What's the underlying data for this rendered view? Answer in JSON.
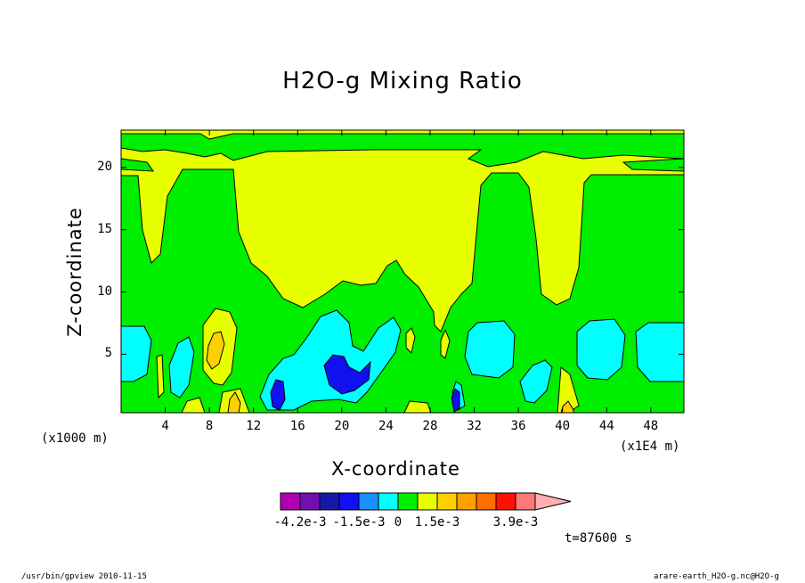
{
  "chart_data": {
    "type": "heatmap",
    "title": "H2O-g Mixing Ratio",
    "xlabel": "X-coordinate",
    "ylabel": "Z-coordinate",
    "x_unit_left": "(x1000 m)",
    "x_unit_right": "(x1E4 m)",
    "xlim": [
      0,
      51
    ],
    "ylim": [
      0.3,
      23
    ],
    "x_ticks": [
      "4",
      "8",
      "12",
      "16",
      "20",
      "24",
      "28",
      "32",
      "36",
      "40",
      "44",
      "48"
    ],
    "y_ticks": [
      "5",
      "10",
      "15",
      "20"
    ],
    "colorbar": {
      "colors": [
        "#b000b0",
        "#7010b0",
        "#1818a8",
        "#1010f0",
        "#1890ff",
        "#00ffff",
        "#00ee00",
        "#e8ff00",
        "#ffd000",
        "#ffa000",
        "#ff7000",
        "#ff1000",
        "#ff7878",
        "#ffb0b0"
      ],
      "labels": [
        "-4.2e-3",
        "-1.5e-3",
        "0",
        "1.5e-3",
        "3.9e-3"
      ]
    },
    "time_label": "t=87600 s"
  },
  "footer": {
    "left": "/usr/bin/gpview   2010-11-15",
    "right": "arare-earth_H2O-g.nc@H2O-g"
  }
}
